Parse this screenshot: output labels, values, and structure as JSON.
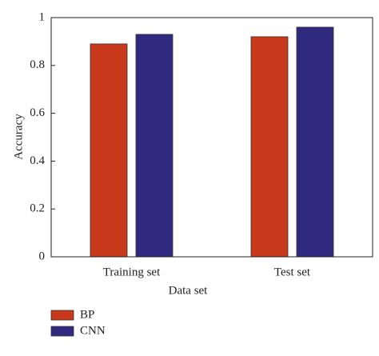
{
  "chart_data": {
    "type": "bar",
    "xlabel": "Data set",
    "ylabel": "Accuracy",
    "categories": [
      "Training set",
      "Test set"
    ],
    "series": [
      {
        "name": "BP",
        "color": "#c8391b",
        "values": [
          0.89,
          0.92
        ]
      },
      {
        "name": "CNN",
        "color": "#2f2a80",
        "values": [
          0.93,
          0.96
        ]
      }
    ],
    "ylim": [
      0,
      1
    ],
    "yticks": [
      0,
      0.2,
      0.4,
      0.6,
      0.8,
      1
    ],
    "legend": "bottom-left"
  }
}
